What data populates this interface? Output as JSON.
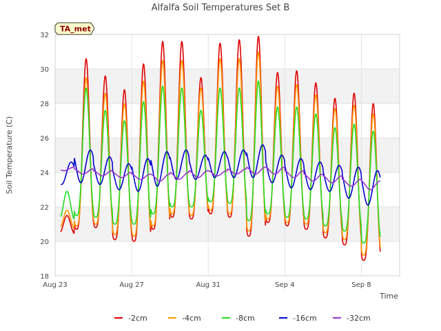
{
  "chart_data": {
    "type": "line",
    "title": "Alfalfa Soil Temperatures Set B",
    "xlabel": "Time",
    "ylabel": "Soil Temperature (C)",
    "badge": "TA_met",
    "xlim": [
      "2023-08-23",
      "2023-09-10"
    ],
    "ylim": [
      18,
      32
    ],
    "yticks": [
      18,
      20,
      22,
      24,
      26,
      28,
      30,
      32
    ],
    "xticks": [
      {
        "date": "2023-08-23",
        "label": "Aug 23"
      },
      {
        "date": "2023-08-27",
        "label": "Aug 27"
      },
      {
        "date": "2023-08-31",
        "label": "Aug 31"
      },
      {
        "date": "2023-09-04",
        "label": "Sep 4"
      },
      {
        "date": "2023-09-08",
        "label": "Sep 8"
      }
    ],
    "grid": true,
    "legend_position": "bottom",
    "series": [
      {
        "name": "-2cm",
        "color": "#dd0000",
        "daily_max": [
          21.5,
          30.6,
          29.6,
          28.8,
          30.3,
          31.6,
          31.6,
          29.5,
          31.5,
          31.7,
          31.9,
          29.8,
          29.9,
          29.2,
          28.3,
          28.6,
          28.0,
          28.8
        ],
        "daily_min": [
          20.4,
          20.7,
          20.8,
          20.1,
          20.0,
          20.7,
          21.4,
          21.3,
          21.6,
          21.4,
          20.3,
          21.1,
          20.9,
          20.7,
          20.2,
          19.8,
          18.9,
          20.3
        ]
      },
      {
        "name": "-4cm",
        "color": "#ff9900",
        "daily_max": [
          21.8,
          29.5,
          28.6,
          28.0,
          29.3,
          30.5,
          30.5,
          28.9,
          30.6,
          30.6,
          31.0,
          29.0,
          29.1,
          28.5,
          27.7,
          27.9,
          27.4,
          28.3
        ],
        "daily_min": [
          20.7,
          20.9,
          21.0,
          20.4,
          20.3,
          20.9,
          21.6,
          21.5,
          21.8,
          21.6,
          20.6,
          21.3,
          21.1,
          21.0,
          20.5,
          20.1,
          19.2,
          20.6
        ]
      },
      {
        "name": "-8cm",
        "color": "#22dd22",
        "daily_max": [
          22.9,
          28.9,
          27.6,
          27.0,
          28.1,
          29.0,
          28.9,
          27.6,
          28.9,
          28.9,
          29.3,
          27.8,
          27.8,
          27.4,
          26.6,
          26.8,
          26.4,
          26.9
        ],
        "daily_min": [
          21.2,
          21.5,
          21.4,
          21.0,
          21.0,
          21.6,
          22.0,
          22.0,
          22.3,
          22.2,
          21.2,
          21.6,
          21.4,
          21.3,
          20.9,
          20.6,
          19.9,
          21.3
        ]
      },
      {
        "name": "-16cm",
        "color": "#0000cc",
        "daily_max": [
          24.6,
          25.3,
          24.9,
          24.5,
          24.8,
          25.2,
          25.3,
          25.0,
          25.2,
          25.3,
          25.6,
          25.0,
          24.8,
          24.6,
          24.4,
          24.3,
          24.1,
          23.8
        ],
        "daily_min": [
          23.3,
          23.4,
          23.3,
          23.0,
          22.9,
          23.2,
          23.6,
          23.6,
          23.7,
          23.7,
          23.7,
          23.4,
          23.1,
          23.0,
          22.9,
          22.5,
          22.1,
          23.1
        ]
      },
      {
        "name": "-32cm",
        "color": "#9933cc",
        "daily_max": [
          24.3,
          24.2,
          24.1,
          24.0,
          23.9,
          23.9,
          24.0,
          24.1,
          24.1,
          24.2,
          24.3,
          24.3,
          24.1,
          23.9,
          23.8,
          23.6,
          23.5,
          23.1
        ],
        "daily_min": [
          24.1,
          23.9,
          23.8,
          23.7,
          23.6,
          23.5,
          23.6,
          23.7,
          23.8,
          23.9,
          23.9,
          23.9,
          23.7,
          23.5,
          23.4,
          23.2,
          23.0,
          22.9
        ]
      }
    ]
  }
}
